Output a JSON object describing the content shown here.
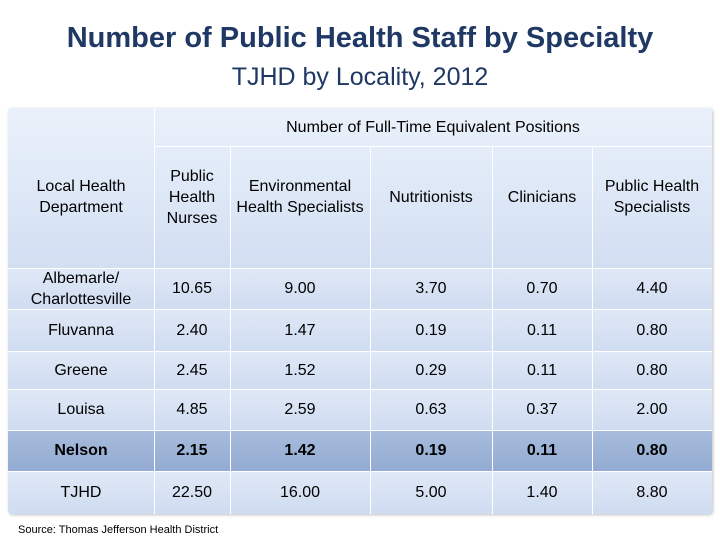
{
  "title": "Number of Public Health Staff by Specialty",
  "subtitle": "TJHD by Locality, 2012",
  "table": {
    "group_header": "Number of Full-Time Equivalent Positions",
    "row_header_label": "Local Health Department",
    "columns": [
      "Public Health Nurses",
      "Environmental Health Specialists",
      "Nutritionists",
      "Clinicians",
      "Public Health Specialists"
    ],
    "rows": [
      {
        "name": "Albemarle/ Charlottesville",
        "values": [
          "10.65",
          "9.00",
          "3.70",
          "0.70",
          "4.40"
        ]
      },
      {
        "name": "Fluvanna",
        "values": [
          "2.40",
          "1.47",
          "0.19",
          "0.11",
          "0.80"
        ]
      },
      {
        "name": "Greene",
        "values": [
          "2.45",
          "1.52",
          "0.29",
          "0.11",
          "0.80"
        ]
      },
      {
        "name": "Louisa",
        "values": [
          "4.85",
          "2.59",
          "0.63",
          "0.37",
          "2.00"
        ]
      },
      {
        "name": "Nelson",
        "values": [
          "2.15",
          "1.42",
          "0.19",
          "0.11",
          "0.80"
        ],
        "highlight": true
      },
      {
        "name": "TJHD",
        "values": [
          "22.50",
          "16.00",
          "5.00",
          "1.40",
          "8.80"
        ]
      }
    ]
  },
  "source": "Source:  Thomas Jefferson Health District",
  "colors": {
    "title": "#1f3864",
    "cell_fill": "#d2dff2",
    "highlight_fill": "#9bb1d6"
  }
}
